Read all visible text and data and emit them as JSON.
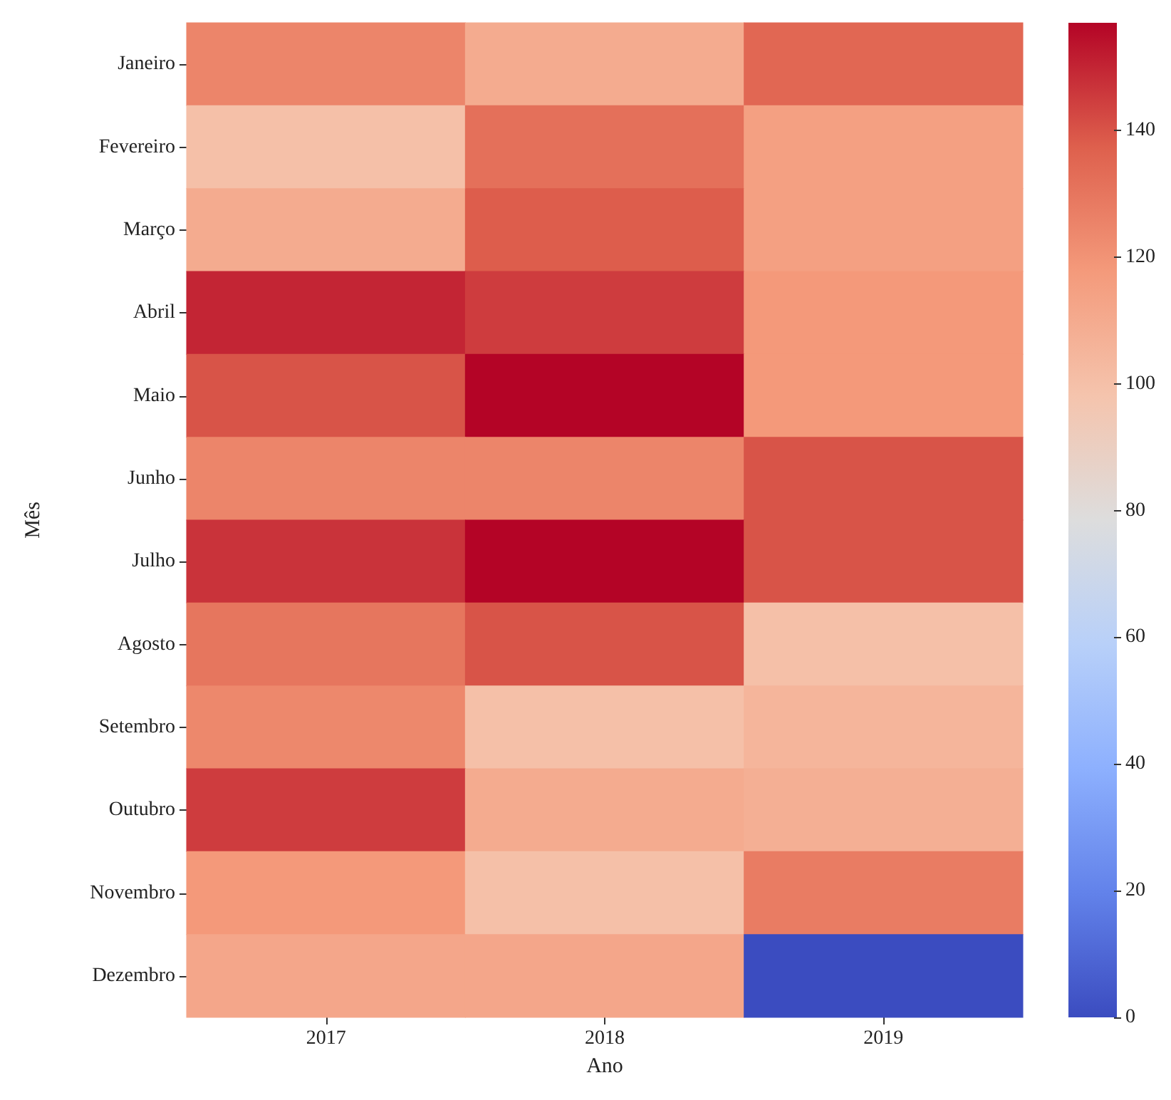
{
  "chart_data": {
    "type": "heatmap",
    "xlabel": "Ano",
    "ylabel": "Mês",
    "categories": [
      "2017",
      "2018",
      "2019"
    ],
    "y_categories": [
      "Janeiro",
      "Fevereiro",
      "Março",
      "Abril",
      "Maio",
      "Junho",
      "Julho",
      "Agosto",
      "Setembro",
      "Outubro",
      "Novembro",
      "Dezembro"
    ],
    "cells": [
      [
        125,
        110,
        135
      ],
      [
        100,
        132,
        115
      ],
      [
        110,
        138,
        115
      ],
      [
        150,
        145,
        118
      ],
      [
        140,
        157,
        118
      ],
      [
        125,
        125,
        140
      ],
      [
        147,
        157,
        140
      ],
      [
        130,
        140,
        100
      ],
      [
        124,
        100,
        105
      ],
      [
        145,
        110,
        108
      ],
      [
        118,
        100,
        128
      ],
      [
        112,
        112,
        0
      ]
    ],
    "clim": [
      0,
      157
    ],
    "cticks": [
      0,
      20,
      40,
      60,
      80,
      100,
      120,
      140
    ]
  }
}
